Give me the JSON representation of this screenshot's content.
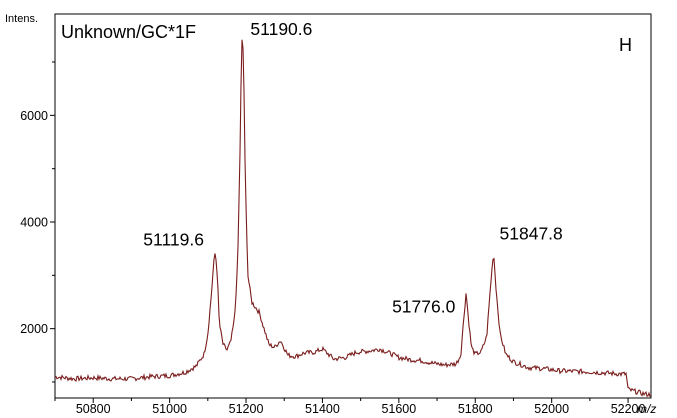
{
  "chart_data": {
    "type": "line",
    "title": "Unknown/GC*1F",
    "panel_label": "H",
    "ylabel": "Intens.",
    "xlabel": "m/z",
    "xlim": [
      50700,
      52260
    ],
    "ylim": [
      700,
      7900
    ],
    "x_ticks": [
      50800,
      51000,
      51200,
      51400,
      51600,
      51800,
      52000,
      52200
    ],
    "y_ticks": [
      2000,
      4000,
      6000
    ],
    "line_color": "#7a1c1c",
    "peak_annotations": [
      {
        "x": 51119.6,
        "y": 3450,
        "label": "51119.6"
      },
      {
        "x": 51190.6,
        "y": 7620,
        "label": "51190.6"
      },
      {
        "x": 51776.0,
        "y": 2680,
        "label": "51776.0"
      },
      {
        "x": 51847.8,
        "y": 3450,
        "label": "51847.8"
      }
    ],
    "series": [
      {
        "x": [
          50700,
          50750,
          50800,
          50850,
          50900,
          50950,
          51000,
          51040,
          51070,
          51090,
          51100,
          51110,
          51115,
          51119.6,
          51125,
          51130,
          51140,
          51150,
          51160,
          51170,
          51178,
          51184,
          51188,
          51190.6,
          51194,
          51198,
          51205,
          51215,
          51225,
          51235,
          51245,
          51260,
          51275,
          51290,
          51310,
          51330,
          51350,
          51380,
          51400,
          51430,
          51460,
          51490,
          51520,
          51550,
          51580,
          51600,
          51630,
          51660,
          51690,
          51720,
          51750,
          51762,
          51770,
          51776.0,
          51782,
          51790,
          51800,
          51815,
          51830,
          51840,
          51847.8,
          51855,
          51865,
          51880,
          51900,
          51940,
          51980,
          52020,
          52060,
          52100,
          52140,
          52180,
          52195,
          52200,
          52240,
          52260
        ],
        "y": [
          1100,
          1060,
          1080,
          1060,
          1060,
          1100,
          1120,
          1180,
          1300,
          1520,
          1900,
          2700,
          3200,
          3450,
          3000,
          2100,
          1700,
          1600,
          1750,
          2200,
          3200,
          5200,
          7100,
          7620,
          6800,
          4800,
          3000,
          2500,
          2400,
          2300,
          2050,
          1700,
          1650,
          1780,
          1500,
          1480,
          1540,
          1560,
          1620,
          1430,
          1460,
          1560,
          1580,
          1620,
          1530,
          1460,
          1420,
          1400,
          1350,
          1320,
          1340,
          1500,
          2200,
          2680,
          2200,
          1650,
          1520,
          1560,
          1850,
          2800,
          3450,
          2700,
          1900,
          1520,
          1380,
          1270,
          1250,
          1210,
          1200,
          1190,
          1170,
          1150,
          1150,
          860,
          780,
          760
        ]
      }
    ]
  }
}
